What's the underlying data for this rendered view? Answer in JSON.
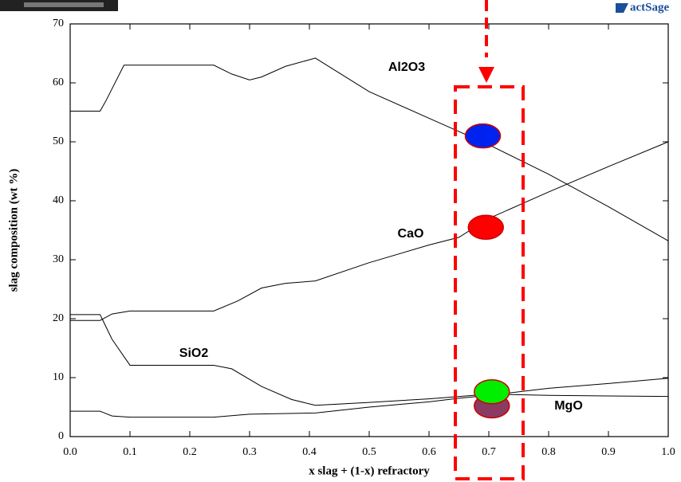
{
  "chart_data": {
    "type": "line",
    "xlabel": "x slag + (1-x) refractory",
    "ylabel": "slag composition (wt %)",
    "logo": "actSage",
    "xlim": [
      0,
      1.0
    ],
    "ylim": [
      0,
      70
    ],
    "xticks": [
      {
        "value": 0,
        "label": "0.0"
      },
      {
        "value": 0.1,
        "label": "0.1"
      },
      {
        "value": 0.2,
        "label": "0.2"
      },
      {
        "value": 0.3,
        "label": "0.3"
      },
      {
        "value": 0.4,
        "label": "0.4"
      },
      {
        "value": 0.5,
        "label": "0.5"
      },
      {
        "value": 0.6,
        "label": "0.6"
      },
      {
        "value": 0.7,
        "label": "0.7"
      },
      {
        "value": 0.8,
        "label": "0.8"
      },
      {
        "value": 0.9,
        "label": "0.9"
      },
      {
        "value": 1.0,
        "label": "1.0"
      }
    ],
    "yticks": [
      0,
      10,
      20,
      30,
      40,
      50,
      60,
      70
    ],
    "series": [
      {
        "name": "Al2O3",
        "color": "#000000",
        "x": [
          0,
          0.05,
          0.06,
          0.09,
          0.24,
          0.27,
          0.3,
          0.32,
          0.36,
          0.41,
          0.5,
          0.6,
          0.7,
          0.8,
          0.9,
          1.0
        ],
        "values": [
          55.2,
          55.2,
          57,
          63,
          63,
          61.5,
          60.5,
          61,
          62.8,
          64.2,
          58.5,
          54,
          49.5,
          44.5,
          39,
          33.2
        ]
      },
      {
        "name": "CaO",
        "color": "#000000",
        "x": [
          0,
          0.05,
          0.07,
          0.1,
          0.24,
          0.28,
          0.32,
          0.36,
          0.41,
          0.5,
          0.6,
          0.65,
          0.7,
          0.8,
          0.9,
          1.0
        ],
        "values": [
          19.7,
          19.7,
          20.8,
          21.3,
          21.3,
          23,
          25.2,
          26,
          26.4,
          29.5,
          32.5,
          33.8,
          37,
          41.5,
          45.8,
          50
        ]
      },
      {
        "name": "SiO2",
        "color": "#000000",
        "x": [
          0,
          0.05,
          0.07,
          0.1,
          0.24,
          0.27,
          0.32,
          0.37,
          0.41,
          0.5,
          0.6,
          0.7,
          0.8,
          0.9,
          1.0
        ],
        "values": [
          20.7,
          20.7,
          16.5,
          12.1,
          12.1,
          11.5,
          8.5,
          6.3,
          5.3,
          5.8,
          6.4,
          7.2,
          7.0,
          6.9,
          6.8
        ]
      },
      {
        "name": "MgO",
        "color": "#000000",
        "x": [
          0,
          0.05,
          0.07,
          0.1,
          0.24,
          0.3,
          0.41,
          0.5,
          0.6,
          0.65,
          0.7,
          0.8,
          0.9,
          1.0
        ],
        "values": [
          4.3,
          4.3,
          3.5,
          3.3,
          3.3,
          3.8,
          4,
          5,
          5.9,
          6.5,
          7.0,
          8.2,
          9,
          9.9
        ]
      }
    ],
    "highlights": [
      {
        "x": 0.69,
        "y": 51,
        "color": "#0022ee"
      },
      {
        "x": 0.695,
        "y": 35.5,
        "color": "#ff0000"
      },
      {
        "x": 0.705,
        "y": 5.2,
        "color": "#8b3a62"
      },
      {
        "x": 0.705,
        "y": 7.6,
        "color": "#00ee00"
      }
    ]
  }
}
